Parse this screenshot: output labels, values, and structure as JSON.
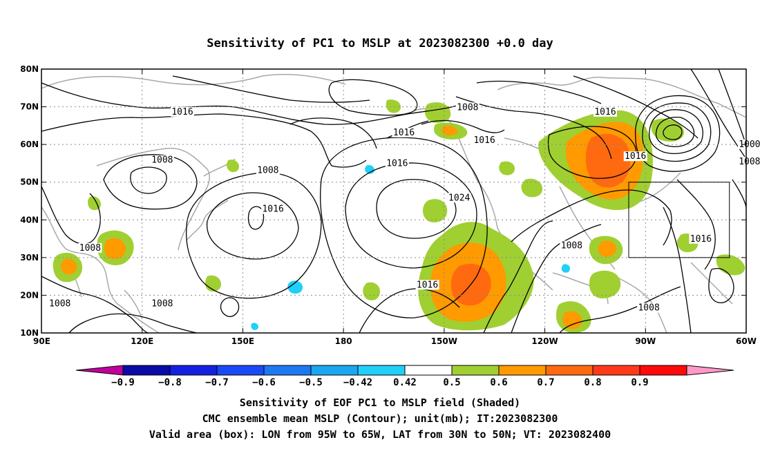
{
  "title": "Sensitivity of PC1 to MSLP at 2023082300 +0.0 day",
  "map": {
    "lon_range": [
      90,
      300
    ],
    "lat_range": [
      10,
      80
    ],
    "x_ticks": [
      {
        "lon": 90,
        "label": "90E"
      },
      {
        "lon": 120,
        "label": "120E"
      },
      {
        "lon": 150,
        "label": "150E"
      },
      {
        "lon": 180,
        "label": "180"
      },
      {
        "lon": 210,
        "label": "150W"
      },
      {
        "lon": 240,
        "label": "120W"
      },
      {
        "lon": 270,
        "label": "90W"
      },
      {
        "lon": 300,
        "label": "60W"
      }
    ],
    "y_ticks": [
      {
        "lat": 80,
        "label": "80N"
      },
      {
        "lat": 70,
        "label": "70N"
      },
      {
        "lat": 60,
        "label": "60N"
      },
      {
        "lat": 50,
        "label": "50N"
      },
      {
        "lat": 40,
        "label": "40N"
      },
      {
        "lat": 30,
        "label": "30N"
      },
      {
        "lat": 20,
        "label": "20N"
      },
      {
        "lat": 10,
        "label": "10N"
      }
    ],
    "grid": "dotted",
    "valid_box": {
      "lon_min": 265,
      "lon_max": 295,
      "lat_min": 30,
      "lat_max": 50
    },
    "contour_labels": [
      {
        "text": "1016",
        "lon": 132,
        "lat": 68.3
      },
      {
        "text": "1008",
        "lon": 217,
        "lat": 69.5
      },
      {
        "text": "1016",
        "lon": 198,
        "lat": 62.8
      },
      {
        "text": "1016",
        "lon": 258,
        "lat": 68.3
      },
      {
        "text": "1016",
        "lon": 222,
        "lat": 60.8
      },
      {
        "text": "1016",
        "lon": 196,
        "lat": 54.6
      },
      {
        "text": "1008",
        "lon": 126,
        "lat": 55.5
      },
      {
        "text": "1008",
        "lon": 157.5,
        "lat": 52.8
      },
      {
        "text": "1016",
        "lon": 267,
        "lat": 56.5
      },
      {
        "text": "1000",
        "lon": 301,
        "lat": 59.7
      },
      {
        "text": "1008",
        "lon": 301,
        "lat": 55.1
      },
      {
        "text": "1024",
        "lon": 214.5,
        "lat": 45.5
      },
      {
        "text": "1016",
        "lon": 159,
        "lat": 42.5
      },
      {
        "text": "1008",
        "lon": 104.5,
        "lat": 32.2
      },
      {
        "text": "1008",
        "lon": 248,
        "lat": 32.8
      },
      {
        "text": "1016",
        "lon": 286.5,
        "lat": 34.6
      },
      {
        "text": "1016",
        "lon": 205,
        "lat": 22.4
      },
      {
        "text": "1008",
        "lon": 95.5,
        "lat": 17.4
      },
      {
        "text": "1008",
        "lon": 126,
        "lat": 17.4
      },
      {
        "text": "1008",
        "lon": 271,
        "lat": 16.3
      }
    ]
  },
  "colorbar": {
    "ticks": [
      "−0.9",
      "−0.8",
      "−0.7",
      "−0.6",
      "−0.5",
      "−0.42",
      "0.42",
      "0.5",
      "0.6",
      "0.7",
      "0.8",
      "0.9"
    ],
    "colors": [
      "#c0009a",
      "#0a0aa8",
      "#1420e0",
      "#1a4af5",
      "#1e78f0",
      "#1aa6f0",
      "#20d0f8",
      "#ffffff",
      "#a0cf32",
      "#ff9a00",
      "#ff6a10",
      "#ff3a1a",
      "#ff0a0a",
      "#ff9ac8"
    ]
  },
  "captions": [
    "Sensitivity of EOF PC1 to MSLP field (Shaded)",
    "CMC ensemble mean MSLP (Contour); unit(mb); IT:2023082300",
    "Valid area (box): LON from 95W to 65W, LAT from 30N to 50N; VT: 2023082400"
  ]
}
